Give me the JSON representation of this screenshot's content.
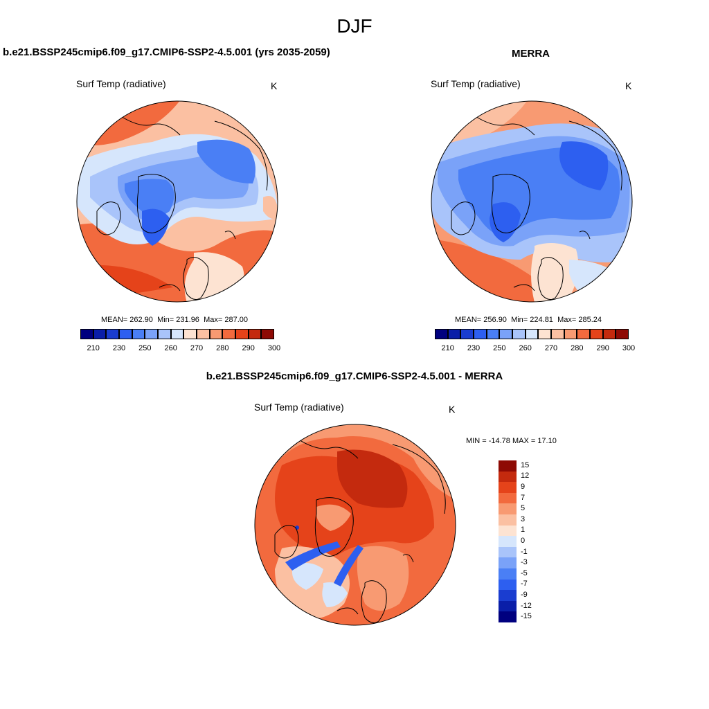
{
  "figure": {
    "title": "DJF"
  },
  "panels": {
    "model": {
      "title": "b.e21.BSSP245cmip6.f09_g17.CMIP6-SSP2-4.5.001 (yrs 2035-2059)",
      "variable": "Surf Temp (radiative)",
      "units": "K",
      "mean_label": "MEAN=",
      "mean": "262.90",
      "min_label": "Min=",
      "min": "231.96",
      "max_label": "Max=",
      "max": "287.00"
    },
    "obs": {
      "title": "MERRA",
      "variable": "Surf Temp (radiative)",
      "units": "K",
      "mean_label": "MEAN=",
      "mean": "256.90",
      "min_label": "Min=",
      "min": "224.81",
      "max_label": "Max=",
      "max": "285.24"
    },
    "diff": {
      "title": "b.e21.BSSP245cmip6.f09_g17.CMIP6-SSP2-4.5.001 - MERRA",
      "variable": "Surf Temp (radiative)",
      "units": "K",
      "minmax": "MIN = -14.78 MAX =  17.10"
    }
  },
  "colorbars": {
    "absolute": {
      "colors": [
        "#00007f",
        "#0a1ea8",
        "#1a3dd0",
        "#2d5ff0",
        "#4a7ff5",
        "#7aa2f8",
        "#a9c4fa",
        "#d6e6fc",
        "#fde3d2",
        "#fbc0a2",
        "#f89a72",
        "#f26a3e",
        "#e5431a",
        "#c42a0e",
        "#8e0a04"
      ],
      "ticks": [
        "210",
        "230",
        "250",
        "260",
        "270",
        "280",
        "290",
        "300"
      ]
    },
    "difference": {
      "colors": [
        "#8e0a04",
        "#c42a0e",
        "#e5431a",
        "#f26a3e",
        "#f89a72",
        "#fbc0a2",
        "#fde3d2",
        "#d6e6fc",
        "#a9c4fa",
        "#7aa2f8",
        "#4a7ff5",
        "#2d5ff0",
        "#1a3dd0",
        "#0a1ea8",
        "#00007f"
      ],
      "ticks": [
        "15",
        "12",
        "9",
        "7",
        "5",
        "3",
        "1",
        "0",
        "-1",
        "-3",
        "-5",
        "-7",
        "-9",
        "-12",
        "-15"
      ]
    }
  }
}
